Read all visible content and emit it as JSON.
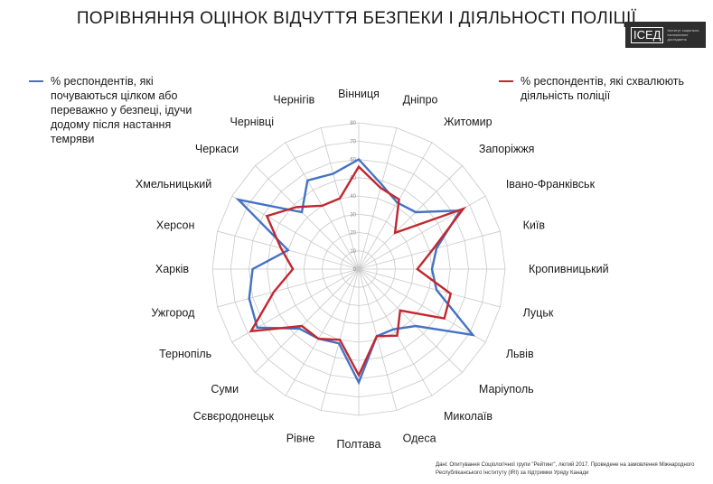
{
  "title": "ПОРІВНЯННЯ ОЦІНОК ВІДЧУТТЯ БЕЗПЕКИ І ДІЯЛЬНОСТІ ПОЛІЦІЇ",
  "logo": {
    "mark": "ІСЕД",
    "caption": "Інститут соціально-економічних досліджень"
  },
  "source": "Дані: Опитування Соціологічної групи \"Рейтинг\", лютий 2017. Проведене на замовлення Міжнародного Республіканського Інституту (IRI) за підтримки Уряду Канади",
  "colors": {
    "safety": "#4472c4",
    "police": "#c0282e",
    "grid": "#c8c8c8"
  },
  "chart_data": {
    "type": "radar",
    "categories": [
      "Вінниця",
      "Дніпро",
      "Житомир",
      "Запоріжжя",
      "Івано-Франківськ",
      "Київ",
      "Кропивницький",
      "Луцьк",
      "Львів",
      "Маріуполь",
      "Миколаїв",
      "Одеса",
      "Полтава",
      "Рівне",
      "Сєвєродонецьк",
      "Суми",
      "Тернопіль",
      "Ужгород",
      "Харків",
      "Херсон",
      "Хмельницький",
      "Черкаси",
      "Чернівці",
      "Чернігів"
    ],
    "ticks": [
      0,
      10,
      20,
      30,
      40,
      50,
      60,
      70,
      80
    ],
    "rlim": [
      0,
      80
    ],
    "grid": true,
    "series": [
      {
        "name": "% респондентів, які почуваються цілком або переважно у безпеці, ідучи додому після настання темряви",
        "values": [
          60,
          48,
          42,
          44,
          64,
          44,
          40,
          44,
          72,
          44,
          38,
          38,
          62,
          42,
          44,
          46,
          64,
          62,
          58,
          40,
          76,
          44,
          56,
          54
        ]
      },
      {
        "name": "% респондентів, які схвалюють діяльність поліції",
        "values": [
          56,
          46,
          44,
          28,
          66,
          42,
          32,
          52,
          54,
          32,
          42,
          38,
          58,
          40,
          44,
          44,
          68,
          48,
          36,
          44,
          58,
          48,
          40,
          40
        ]
      }
    ]
  }
}
